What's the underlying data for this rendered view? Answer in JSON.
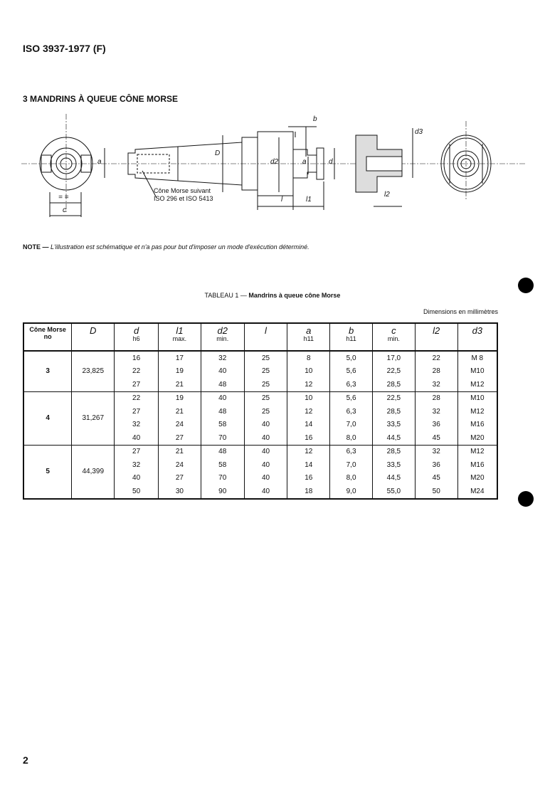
{
  "header": "ISO 3937-1977 (F)",
  "section_title": "3  MANDRINS À QUEUE CÔNE MORSE",
  "figure": {
    "labels": {
      "a": "a",
      "c": "c",
      "D": "D",
      "d2": "d2",
      "d": "d",
      "b": "b",
      "l": "l",
      "l1": "l1",
      "l2": "l2",
      "d3": "d3",
      "eq": "= ="
    },
    "callout_line1": "Cône Morse suivant",
    "callout_line2": "ISO 296 et ISO 5413"
  },
  "note": {
    "prefix": "NOTE — ",
    "text": "L'illustration est schématique et n'a pas pour but d'imposer un mode d'exécution déterminé."
  },
  "table": {
    "caption_prefix": "TABLEAU 1 — ",
    "caption": "Mandrins à queue cône Morse",
    "units": "Dimensions en millimètres",
    "columns": [
      {
        "sym": "Cône Morse",
        "sub": "no"
      },
      {
        "sym": "D",
        "sub": ""
      },
      {
        "sym": "d",
        "sub": "h6"
      },
      {
        "sym": "l1",
        "sub": "max."
      },
      {
        "sym": "d2",
        "sub": "min."
      },
      {
        "sym": "l",
        "sub": ""
      },
      {
        "sym": "a",
        "sub": "h11"
      },
      {
        "sym": "b",
        "sub": "h11"
      },
      {
        "sym": "c",
        "sub": "min."
      },
      {
        "sym": "l2",
        "sub": ""
      },
      {
        "sym": "d3",
        "sub": ""
      }
    ],
    "groups": [
      {
        "morse": "3",
        "D": "23,825",
        "rows": [
          [
            "16",
            "17",
            "32",
            "25",
            "8",
            "5,0",
            "17,0",
            "22",
            "M 8"
          ],
          [
            "22",
            "19",
            "40",
            "25",
            "10",
            "5,6",
            "22,5",
            "28",
            "M10"
          ],
          [
            "27",
            "21",
            "48",
            "25",
            "12",
            "6,3",
            "28,5",
            "32",
            "M12"
          ]
        ]
      },
      {
        "morse": "4",
        "D": "31,267",
        "rows": [
          [
            "22",
            "19",
            "40",
            "25",
            "10",
            "5,6",
            "22,5",
            "28",
            "M10"
          ],
          [
            "27",
            "21",
            "48",
            "25",
            "12",
            "6,3",
            "28,5",
            "32",
            "M12"
          ],
          [
            "32",
            "24",
            "58",
            "40",
            "14",
            "7,0",
            "33,5",
            "36",
            "M16"
          ],
          [
            "40",
            "27",
            "70",
            "40",
            "16",
            "8,0",
            "44,5",
            "45",
            "M20"
          ]
        ]
      },
      {
        "morse": "5",
        "D": "44,399",
        "rows": [
          [
            "27",
            "21",
            "48",
            "40",
            "12",
            "6,3",
            "28,5",
            "32",
            "M12"
          ],
          [
            "32",
            "24",
            "58",
            "40",
            "14",
            "7,0",
            "33,5",
            "36",
            "M16"
          ],
          [
            "40",
            "27",
            "70",
            "40",
            "16",
            "8,0",
            "44,5",
            "45",
            "M20"
          ],
          [
            "50",
            "30",
            "90",
            "40",
            "18",
            "9,0",
            "55,0",
            "50",
            "M24"
          ]
        ]
      }
    ]
  },
  "page_number": "2"
}
